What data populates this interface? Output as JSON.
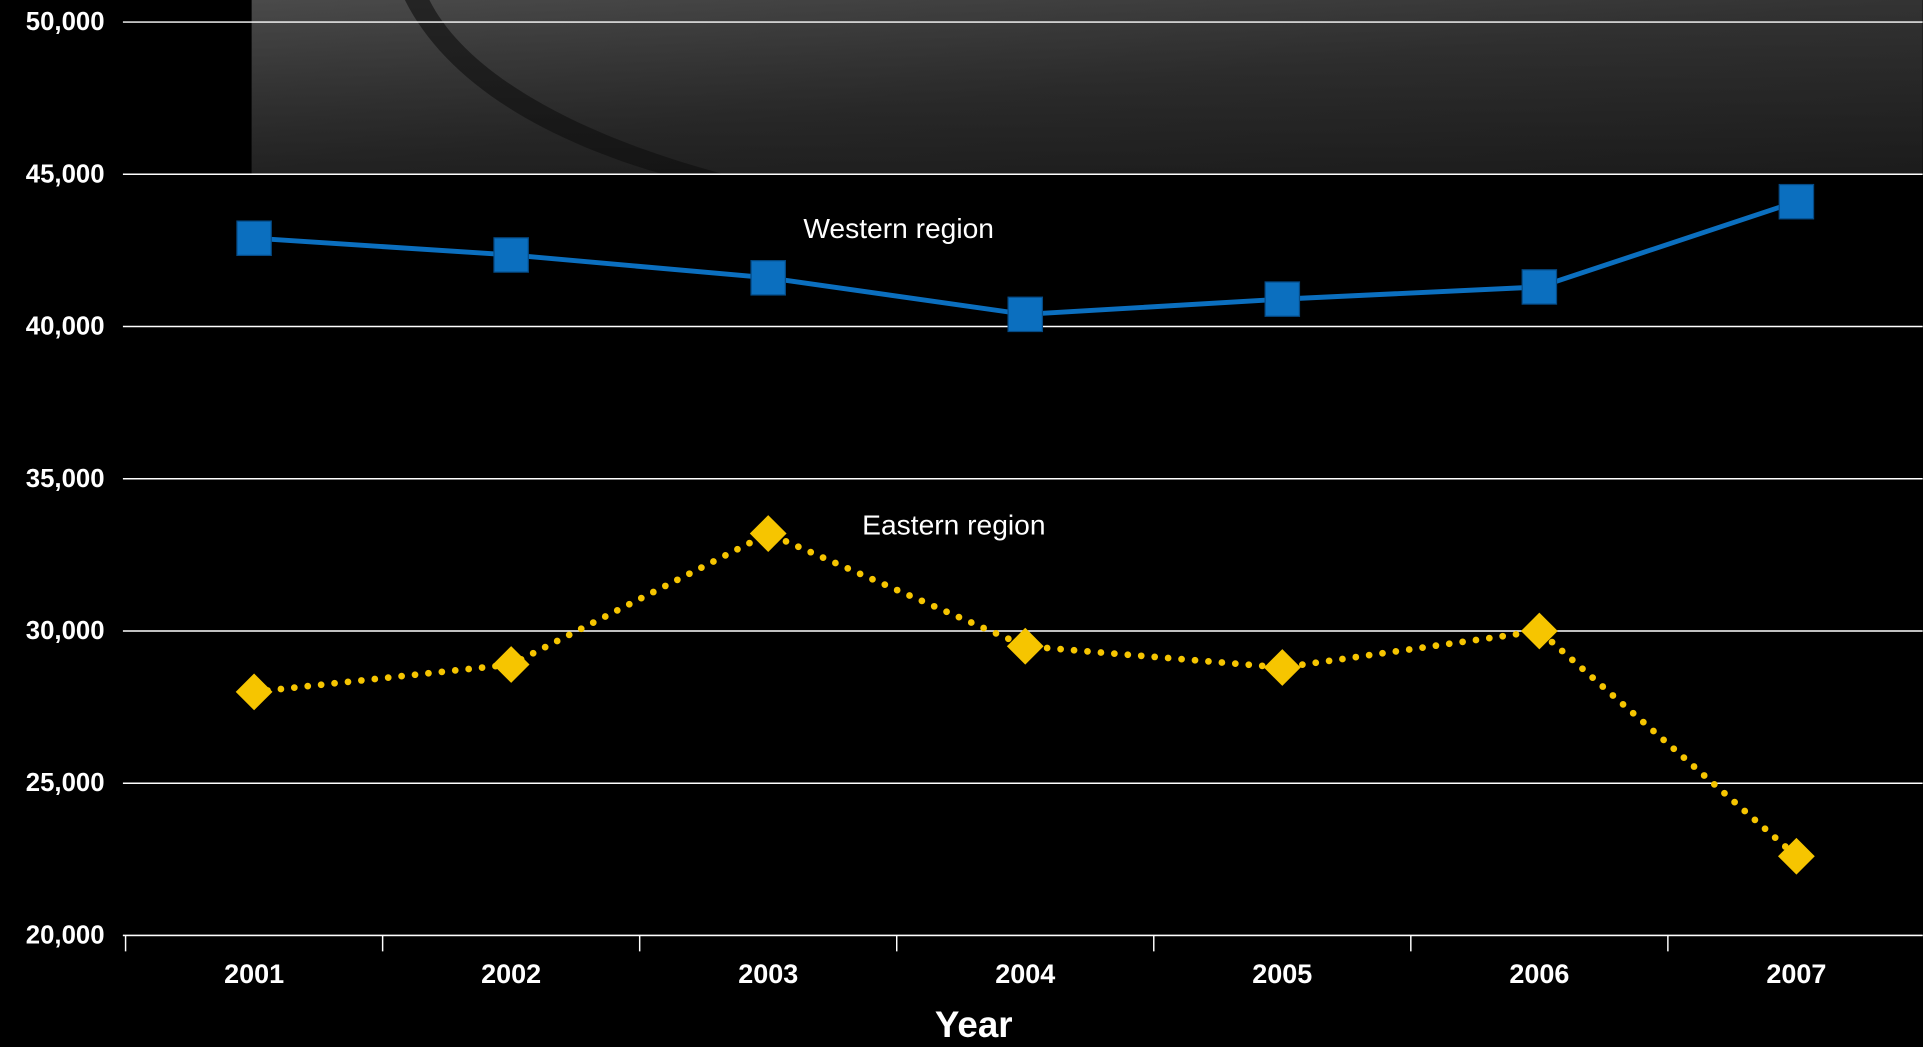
{
  "chart_data": {
    "type": "line",
    "x_label": "Year",
    "categories": [
      "2001",
      "2002",
      "2003",
      "2004",
      "2005",
      "2006",
      "2007"
    ],
    "series": [
      {
        "name": "Western region",
        "color": "#0b6fbf",
        "marker": "square",
        "line_style": "solid",
        "values": [
          42900,
          42350,
          41600,
          40400,
          40900,
          41300,
          44100
        ]
      },
      {
        "name": "Eastern region",
        "color": "#f6c500",
        "marker": "diamond",
        "line_style": "dotted",
        "values": [
          28000,
          28900,
          33200,
          29500,
          28800,
          30000,
          22600
        ]
      }
    ],
    "ylim": [
      20000,
      50000
    ],
    "yticks": [
      {
        "value": 20000,
        "label": "20,000"
      },
      {
        "value": 25000,
        "label": "25,000"
      },
      {
        "value": 30000,
        "label": "30,000"
      },
      {
        "value": 35000,
        "label": "35,000"
      },
      {
        "value": 40000,
        "label": "40,000"
      },
      {
        "value": 45000,
        "label": "45,000"
      },
      {
        "value": 50000,
        "label": "50,000"
      }
    ],
    "grid": true
  }
}
